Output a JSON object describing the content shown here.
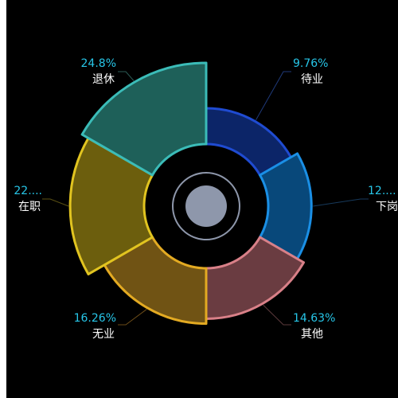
{
  "chart_data": {
    "type": "pie",
    "variant": "nightingale-rose",
    "colors_note": "one color per slice",
    "slices": [
      {
        "name": "待业",
        "percent_label": "9.76%",
        "value": 9.76,
        "fill": "#0c2568",
        "stroke": "#1f4bd1",
        "pct_color": "#27c6e8",
        "line": "#1f3a7a"
      },
      {
        "name": "下岗",
        "percent_label": "12....",
        "value": 12.2,
        "fill": "#08487a",
        "stroke": "#1a8fe5",
        "pct_color": "#27c6e8",
        "line": "#173a5c"
      },
      {
        "name": "其他",
        "percent_label": "14.63%",
        "value": 14.63,
        "fill": "#6a3c41",
        "stroke": "#d98088",
        "pct_color": "#27c6e8",
        "line": "#5c3a3c"
      },
      {
        "name": "无业",
        "percent_label": "16.26%",
        "value": 16.26,
        "fill": "#705314",
        "stroke": "#e3aa22",
        "pct_color": "#27c6e8",
        "line": "#6b4c18"
      },
      {
        "name": "在职",
        "percent_label": "22....",
        "value": 22.4,
        "fill": "#6c5e0d",
        "stroke": "#e1c420",
        "pct_color": "#27c6e8",
        "line": "#5c5214"
      },
      {
        "name": "退休",
        "percent_label": "24.8%",
        "value": 24.8,
        "fill": "#1e6059",
        "stroke": "#3bbcb8",
        "pct_color": "#27c6e8",
        "line": "#2b5a55"
      }
    ],
    "center": {
      "ring_color": "#8e97ab",
      "dot_color": "#8e97ab"
    }
  }
}
